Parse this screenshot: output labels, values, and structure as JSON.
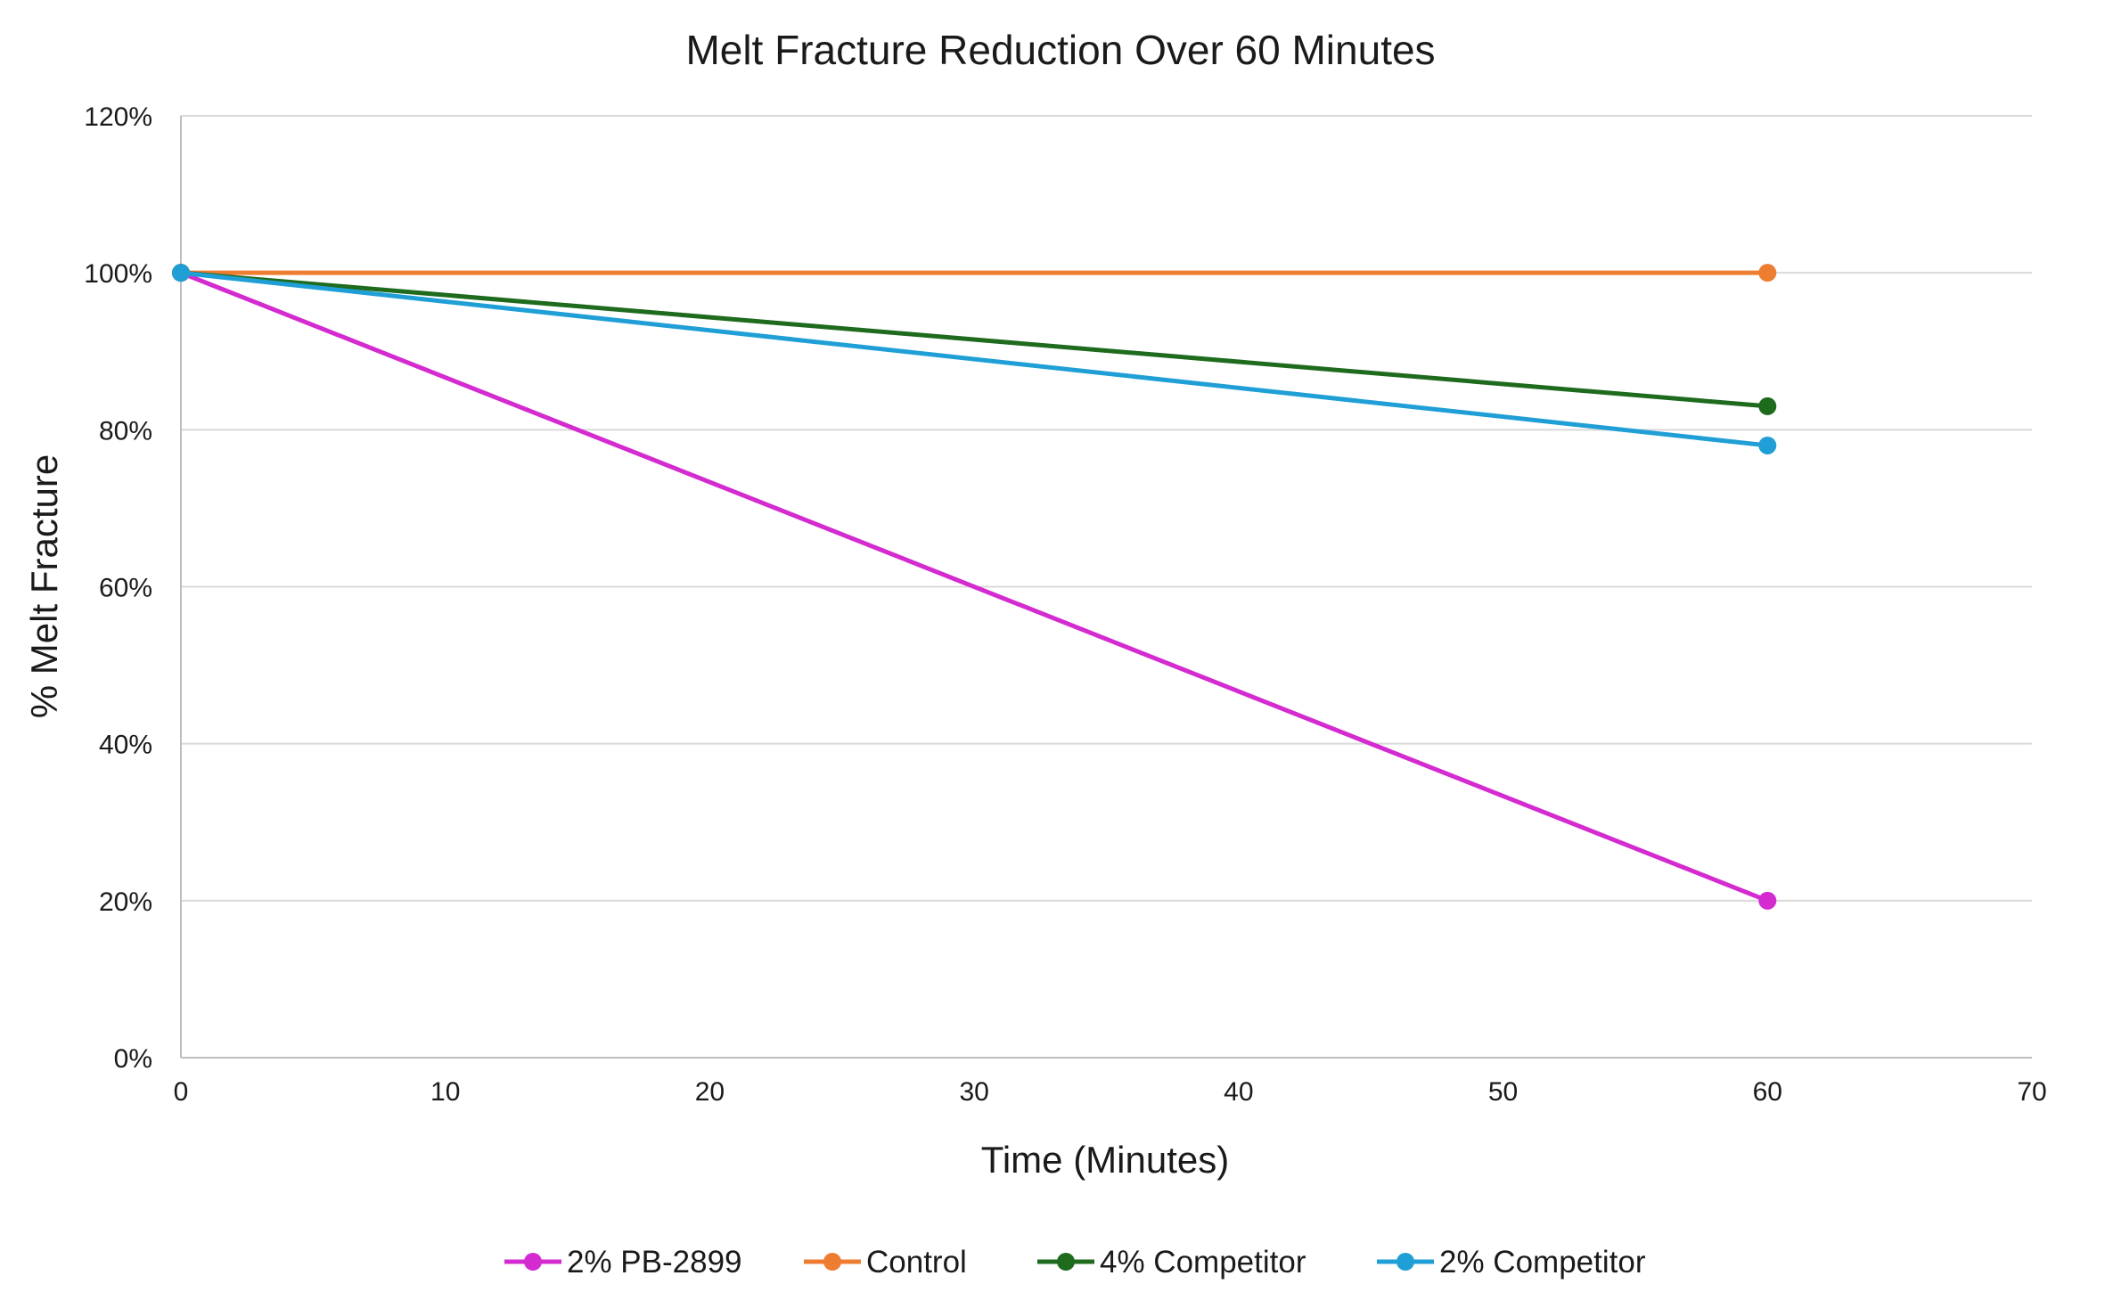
{
  "chart_data": {
    "type": "line",
    "title": "Melt Fracture Reduction Over 60 Minutes",
    "xlabel": "Time (Minutes)",
    "ylabel": "% Melt Fracture",
    "xlim": [
      0,
      70
    ],
    "ylim": [
      0,
      1.2
    ],
    "x_ticks": [
      0,
      10,
      20,
      30,
      40,
      50,
      60,
      70
    ],
    "y_ticks": [
      0,
      0.2,
      0.4,
      0.6,
      0.8,
      1.0,
      1.2
    ],
    "x_tick_labels": [
      "0",
      "10",
      "20",
      "30",
      "40",
      "50",
      "60",
      "70"
    ],
    "y_tick_labels": [
      "0%",
      "20%",
      "40%",
      "60%",
      "80%",
      "100%",
      "120%"
    ],
    "grid": true,
    "legend_position": "bottom",
    "series": [
      {
        "name": "2% PB-2899",
        "color": "#d42bd0",
        "x": [
          0,
          60
        ],
        "y": [
          1.0,
          0.2
        ]
      },
      {
        "name": "Control",
        "color": "#ed7d31",
        "x": [
          0,
          60
        ],
        "y": [
          1.0,
          1.0
        ]
      },
      {
        "name": "4% Competitor",
        "color": "#1e6b1e",
        "x": [
          0,
          60
        ],
        "y": [
          1.0,
          0.83
        ]
      },
      {
        "name": "2% Competitor",
        "color": "#1f9fd6",
        "x": [
          0,
          60
        ],
        "y": [
          1.0,
          0.78
        ]
      }
    ]
  }
}
